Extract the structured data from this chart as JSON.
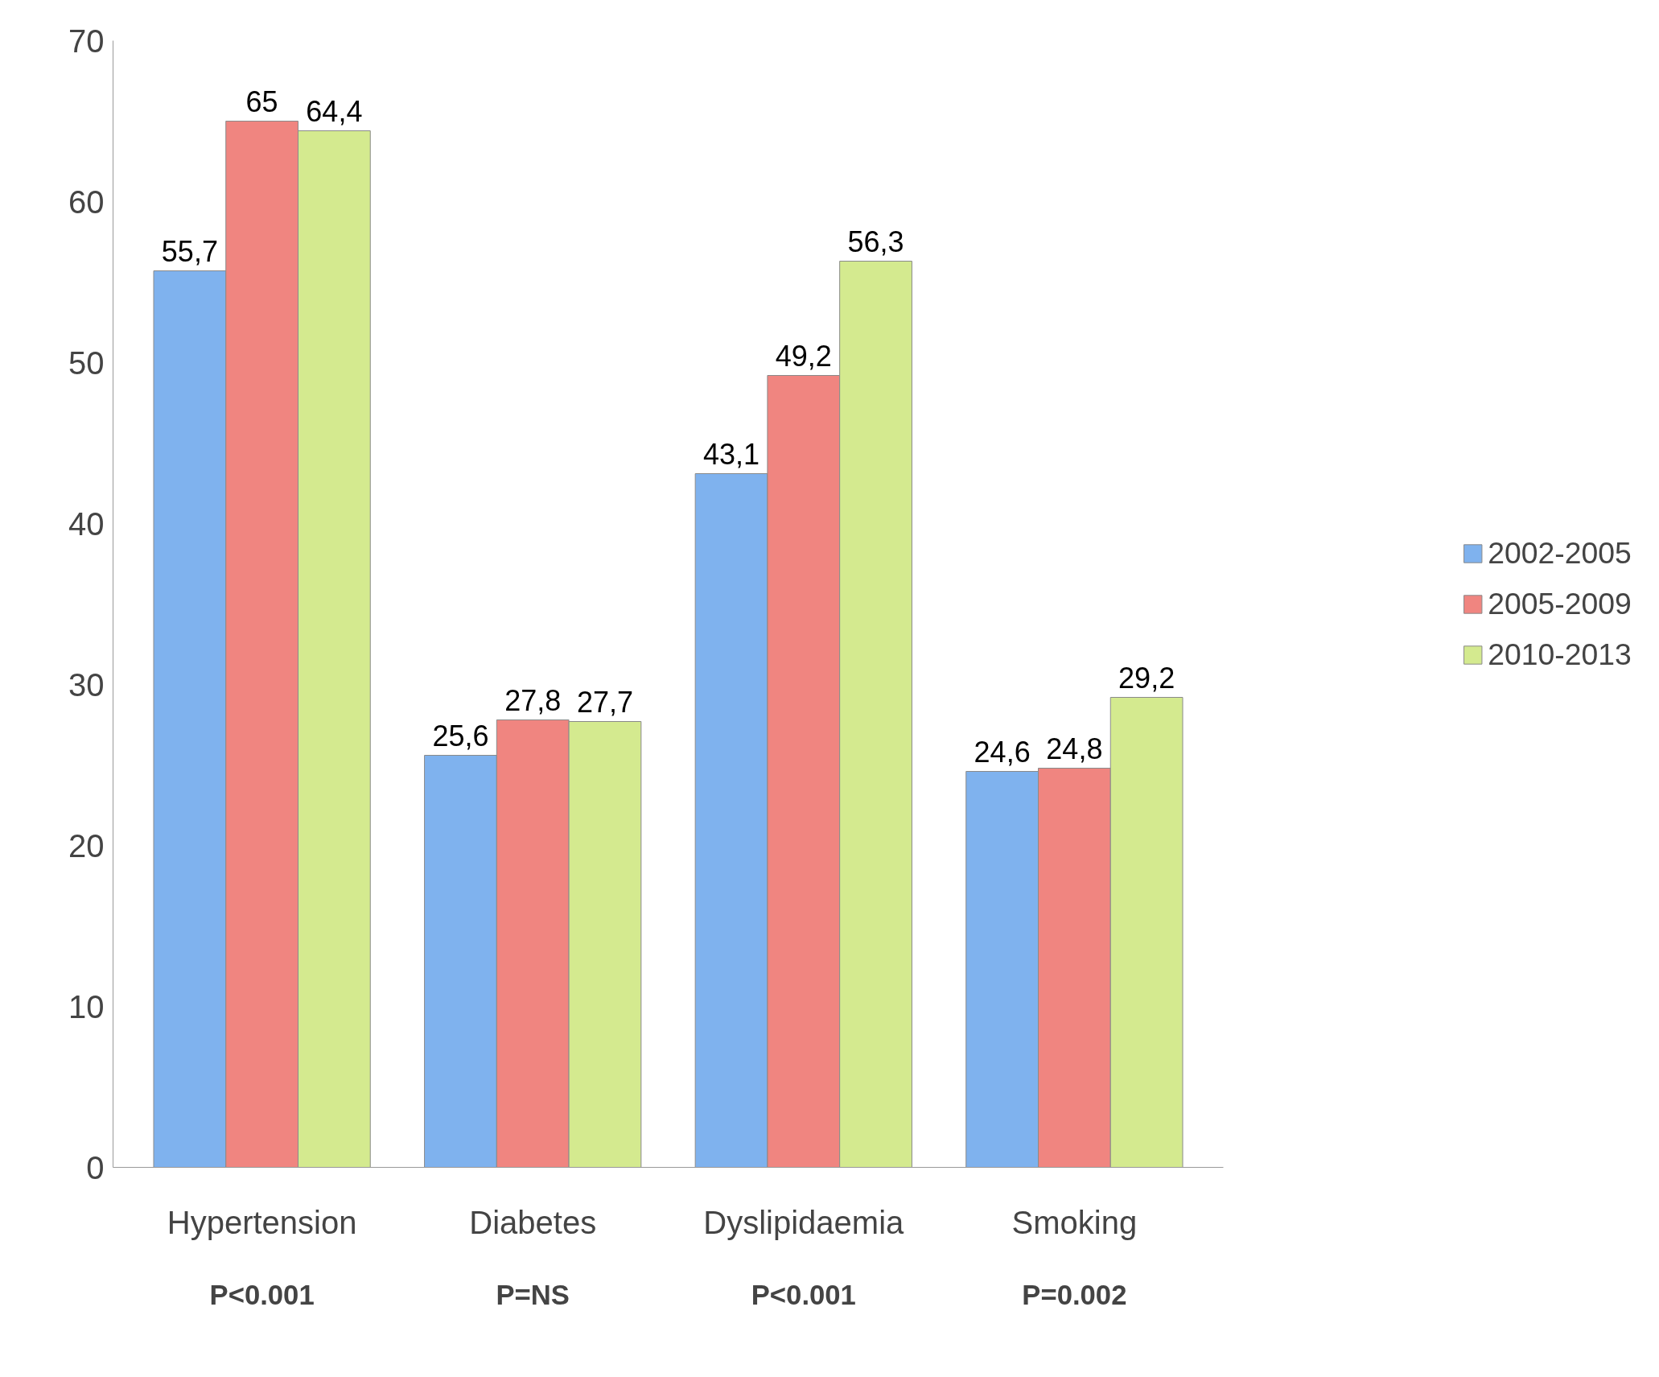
{
  "chart_data": {
    "type": "bar",
    "categories": [
      "Hypertension",
      "Diabetes",
      "Dyslipidaemia",
      "Smoking"
    ],
    "series": [
      {
        "name": "2002-2005",
        "color": "#7fb2ee",
        "values": [
          55.7,
          25.6,
          43.1,
          24.6
        ]
      },
      {
        "name": "2005-2009",
        "color": "#f08580",
        "values": [
          65,
          27.8,
          49.2,
          24.8
        ]
      },
      {
        "name": "2010-2013",
        "color": "#d4ea8f",
        "values": [
          64.4,
          27.7,
          56.3,
          29.2
        ]
      }
    ],
    "value_labels": [
      [
        "55,7",
        "25,6",
        "43,1",
        "24,6"
      ],
      [
        "65",
        "27,8",
        "49,2",
        "24,8"
      ],
      [
        "64,4",
        "27,7",
        "56,3",
        "29,2"
      ]
    ],
    "ylim": [
      0,
      70
    ],
    "yticks": [
      0,
      10,
      20,
      30,
      40,
      50,
      60,
      70
    ],
    "grid": false,
    "legend": "right",
    "annotations": [
      "P<0.001",
      "P=NS",
      "P<0.001",
      "P=0.002"
    ]
  }
}
